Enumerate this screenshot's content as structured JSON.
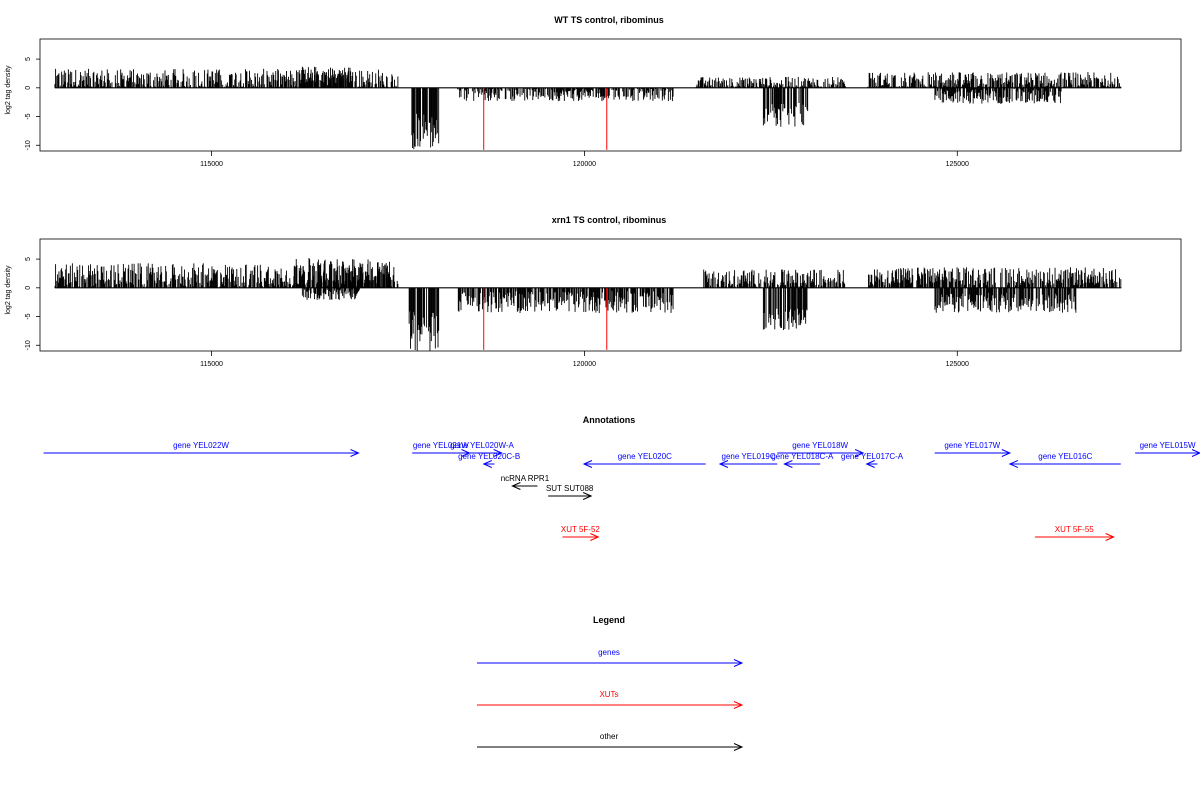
{
  "chart_data": [
    {
      "type": "bar",
      "title": "WT TS control, ribominus",
      "ylabel": "log2 tag density",
      "xlabel": "",
      "xlim": [
        112700,
        128000
      ],
      "ylim": [
        -11,
        8.5
      ],
      "xticks": [
        115000,
        120000,
        125000
      ],
      "yticks": [
        5,
        0,
        -5,
        -10
      ],
      "genome_range": [
        112900,
        127200
      ],
      "regions": [
        {
          "strand": "+",
          "from": 112900,
          "to": 117500,
          "mean": 1.4,
          "spread": 1.2
        },
        {
          "strand": "+",
          "from": 116200,
          "to": 116900,
          "mean": 2.2,
          "spread": 1.0
        },
        {
          "strand": "-",
          "from": 117650,
          "to": 118050,
          "mean": -7.5,
          "spread": 2.0
        },
        {
          "strand": "-",
          "from": 118300,
          "to": 121200,
          "mean": -1.2,
          "spread": 0.7
        },
        {
          "strand": "+",
          "from": 121500,
          "to": 123500,
          "mean": 0.8,
          "spread": 0.7
        },
        {
          "strand": "-",
          "from": 122400,
          "to": 123000,
          "mean": -4.8,
          "spread": 1.4
        },
        {
          "strand": "+",
          "from": 123800,
          "to": 127200,
          "mean": 1.3,
          "spread": 0.9
        },
        {
          "strand": "-",
          "from": 124700,
          "to": 126400,
          "mean": -1.5,
          "spread": 0.8
        }
      ],
      "markers": [
        {
          "x": 118650,
          "y": -10.8
        },
        {
          "x": 120300,
          "y": -10.8
        }
      ]
    },
    {
      "type": "bar",
      "title": "xrn1 TS control, ribominus",
      "ylabel": "log2 tag density",
      "xlabel": "",
      "xlim": [
        112700,
        128000
      ],
      "ylim": [
        -11,
        8.5
      ],
      "xticks": [
        115000,
        120000,
        125000
      ],
      "yticks": [
        5,
        0,
        -5,
        -10
      ],
      "genome_range": [
        112900,
        127200
      ],
      "regions": [
        {
          "strand": "+",
          "from": 112900,
          "to": 117500,
          "mean": 2.2,
          "spread": 1.3
        },
        {
          "strand": "+",
          "from": 116100,
          "to": 117400,
          "mean": 2.8,
          "spread": 1.5
        },
        {
          "strand": "-",
          "from": 116200,
          "to": 117000,
          "mean": -1.2,
          "spread": 0.6
        },
        {
          "strand": "-",
          "from": 117650,
          "to": 118050,
          "mean": -7.5,
          "spread": 2.2
        },
        {
          "strand": "-",
          "from": 118300,
          "to": 121200,
          "mean": -2.5,
          "spread": 1.2
        },
        {
          "strand": "+",
          "from": 121600,
          "to": 123500,
          "mean": 1.6,
          "spread": 1.0
        },
        {
          "strand": "-",
          "from": 122400,
          "to": 123000,
          "mean": -5.5,
          "spread": 1.2
        },
        {
          "strand": "+",
          "from": 123800,
          "to": 127200,
          "mean": 2.0,
          "spread": 1.0
        },
        {
          "strand": "-",
          "from": 124700,
          "to": 126600,
          "mean": -2.6,
          "spread": 1.1
        }
      ],
      "markers": [
        {
          "x": 118650,
          "y": -10.8
        },
        {
          "x": 120300,
          "y": -10.8
        }
      ]
    }
  ],
  "annotations": {
    "title": "Annotations",
    "items": [
      {
        "label": "gene YEL022W",
        "kind": "gene",
        "dir": "right",
        "from": 112750,
        "to": 117150,
        "row": 0
      },
      {
        "label": "gene YEL021W",
        "kind": "gene",
        "dir": "right",
        "from": 117900,
        "to": 118700,
        "row": 0
      },
      {
        "label": "gene YEL020W-A",
        "kind": "gene",
        "dir": "right",
        "from": 118600,
        "to": 119150,
        "row": 0
      },
      {
        "label": "gene YEL020C-B",
        "kind": "gene",
        "dir": "left",
        "from": 118900,
        "to": 119050,
        "row": 1
      },
      {
        "label": "gene YEL020C",
        "kind": "gene",
        "dir": "left",
        "from": 120300,
        "to": 122000,
        "row": 1
      },
      {
        "label": "gene YEL019C",
        "kind": "gene",
        "dir": "left",
        "from": 122200,
        "to": 123000,
        "row": 1
      },
      {
        "label": "gene YEL018W",
        "kind": "gene",
        "dir": "right",
        "from": 123000,
        "to": 124200,
        "row": 0
      },
      {
        "label": "gene YEL018C-A",
        "kind": "gene",
        "dir": "left",
        "from": 123100,
        "to": 123600,
        "row": 1
      },
      {
        "label": "gene YEL017C-A",
        "kind": "gene",
        "dir": "left",
        "from": 124250,
        "to": 124400,
        "row": 1
      },
      {
        "label": "gene YEL017W",
        "kind": "gene",
        "dir": "right",
        "from": 125200,
        "to": 126250,
        "row": 0
      },
      {
        "label": "gene YEL016C",
        "kind": "gene",
        "dir": "left",
        "from": 126250,
        "to": 127800,
        "row": 1
      },
      {
        "label": "gene YEL015W",
        "kind": "gene",
        "dir": "right",
        "from": 128000,
        "to": 129500,
        "row": 0
      },
      {
        "label": "ncRNA RPR1",
        "kind": "other",
        "dir": "left",
        "from": 119300,
        "to": 119650,
        "row": 2
      },
      {
        "label": "SUT SUT088",
        "kind": "other",
        "dir": "right",
        "from": 119800,
        "to": 120400,
        "row": 3
      },
      {
        "label": "XUT 5F-52",
        "kind": "xut",
        "dir": "right",
        "from": 120000,
        "to": 120500,
        "row": 4
      },
      {
        "label": "XUT 5F-55",
        "kind": "xut",
        "dir": "right",
        "from": 126600,
        "to": 127700,
        "row": 4
      }
    ]
  },
  "legend": {
    "title": "Legend",
    "items": [
      {
        "label": "genes",
        "kind": "gene"
      },
      {
        "label": "XUTs",
        "kind": "xut"
      },
      {
        "label": "other",
        "kind": "other"
      }
    ]
  },
  "colors": {
    "gene": "#0000ff",
    "xut": "#ff0000",
    "other": "#000000",
    "marker": "#ff0000",
    "bars": "#000000"
  }
}
